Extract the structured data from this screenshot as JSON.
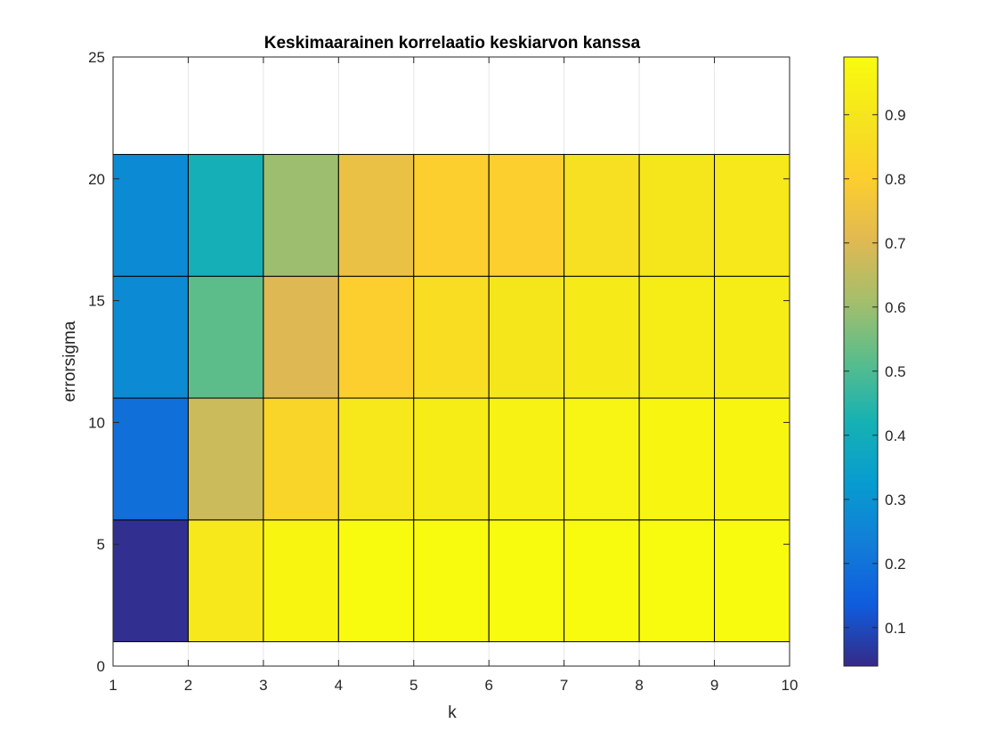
{
  "chart_data": {
    "type": "heatmap",
    "title": "Keskimaarainen korrelaatio keskiarvon kanssa",
    "xlabel": "k",
    "ylabel": "errorsigma",
    "xlim": [
      1,
      10
    ],
    "ylim": [
      0,
      25
    ],
    "xticks": [
      1,
      2,
      3,
      4,
      5,
      6,
      7,
      8,
      9,
      10
    ],
    "yticks": [
      0,
      5,
      10,
      15,
      20,
      25
    ],
    "grid": true,
    "x_edges": [
      1,
      2,
      3,
      4,
      5,
      6,
      7,
      8,
      9,
      10
    ],
    "y_edges": [
      1,
      6,
      11,
      16,
      21
    ],
    "rows": [
      {
        "errorsigma_range": [
          1,
          6
        ],
        "values": [
          0.05,
          0.91,
          0.97,
          0.99,
          0.99,
          0.99,
          0.99,
          0.99,
          0.99
        ]
      },
      {
        "errorsigma_range": [
          6,
          11
        ],
        "values": [
          0.19,
          0.67,
          0.83,
          0.91,
          0.93,
          0.95,
          0.96,
          0.97,
          0.97
        ]
      },
      {
        "errorsigma_range": [
          11,
          16
        ],
        "values": [
          0.27,
          0.52,
          0.7,
          0.8,
          0.86,
          0.9,
          0.92,
          0.93,
          0.93
        ]
      },
      {
        "errorsigma_range": [
          16,
          21
        ],
        "values": [
          0.27,
          0.41,
          0.6,
          0.74,
          0.8,
          0.8,
          0.87,
          0.9,
          0.91
        ]
      }
    ],
    "colorbar": {
      "colormap": "parula",
      "range": [
        0.04,
        0.99
      ],
      "ticks": [
        "0.1",
        "0.2",
        "0.3",
        "0.4",
        "0.5",
        "0.6",
        "0.7",
        "0.8",
        "0.9"
      ],
      "tick_values": [
        0.1,
        0.2,
        0.3,
        0.4,
        0.5,
        0.6,
        0.7,
        0.8,
        0.9
      ],
      "placement": "right"
    }
  }
}
